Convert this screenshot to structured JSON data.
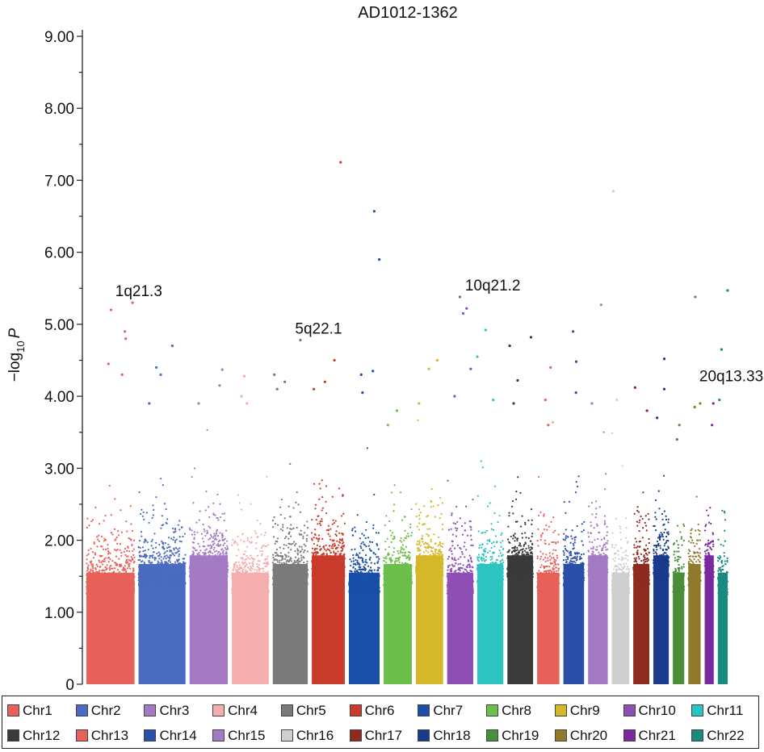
{
  "chart_data": {
    "type": "scatter",
    "title": "AD1012-1362",
    "ylabel_prefix": "−log",
    "ylabel_sub": "10",
    "ylabel_var": "P",
    "xlabel": "",
    "ylim": [
      0,
      9.0
    ],
    "yticks": [
      "0",
      "1.00",
      "2.00",
      "3.00",
      "4.00",
      "5.00",
      "6.00",
      "7.00",
      "8.00",
      "9.00"
    ],
    "grid": false,
    "legend_position": "bottom",
    "chromosomes": [
      {
        "name": "Chr1",
        "color": "#e8605a",
        "size": 249,
        "peak": 5.3,
        "top": [
          5.3,
          5.2,
          4.9,
          4.8,
          4.45,
          4.3
        ]
      },
      {
        "name": "Chr2",
        "color": "#4a6bbf",
        "size": 243,
        "peak": 4.7,
        "top": [
          4.7,
          4.4,
          4.3,
          3.9
        ]
      },
      {
        "name": "Chr3",
        "color": "#a57ac4",
        "size": 198,
        "peak": 4.4,
        "top": [
          4.37,
          4.15,
          3.9
        ]
      },
      {
        "name": "Chr4",
        "color": "#f4aeae",
        "size": 191,
        "peak": 4.3,
        "top": [
          4.28,
          4.0,
          3.9
        ]
      },
      {
        "name": "Chr5",
        "color": "#7a7a7a",
        "size": 181,
        "peak": 4.8,
        "top": [
          4.78,
          4.3,
          4.2,
          4.1
        ]
      },
      {
        "name": "Chr6",
        "color": "#c93b2a",
        "size": 171,
        "peak": 7.25,
        "top": [
          7.25,
          4.5,
          4.2,
          4.1
        ]
      },
      {
        "name": "Chr7",
        "color": "#1a4fa8",
        "size": 159,
        "peak": 6.57,
        "top": [
          6.57,
          5.9,
          4.35,
          4.3,
          4.05
        ]
      },
      {
        "name": "Chr8",
        "color": "#6bbf4a",
        "size": 146,
        "peak": 3.8,
        "top": [
          3.8,
          3.6
        ]
      },
      {
        "name": "Chr9",
        "color": "#d4b82a",
        "size": 141,
        "peak": 4.5,
        "top": [
          4.5,
          4.38,
          3.9
        ]
      },
      {
        "name": "Chr10",
        "color": "#8e4fb5",
        "size": 135,
        "peak": 5.38,
        "top": [
          5.38,
          5.22,
          5.15,
          4.38,
          4.0
        ]
      },
      {
        "name": "Chr11",
        "color": "#2cc4c0",
        "size": 135,
        "peak": 4.92,
        "top": [
          4.92,
          4.55,
          3.95
        ]
      },
      {
        "name": "Chr12",
        "color": "#3a3a3a",
        "size": 133,
        "peak": 4.82,
        "top": [
          4.82,
          4.7,
          4.22,
          3.9
        ]
      },
      {
        "name": "Chr13",
        "color": "#e8605a",
        "size": 115,
        "peak": 4.4,
        "top": [
          4.4,
          3.95,
          3.6
        ]
      },
      {
        "name": "Chr14",
        "color": "#2a4fa8",
        "size": 107,
        "peak": 4.9,
        "top": [
          4.9,
          4.48,
          4.05
        ]
      },
      {
        "name": "Chr15",
        "color": "#a57ac4",
        "size": 102,
        "peak": 5.27,
        "top": [
          5.27,
          3.9
        ]
      },
      {
        "name": "Chr16",
        "color": "#cfcfcf",
        "size": 90,
        "peak": 6.85,
        "top": [
          6.85,
          3.95
        ]
      },
      {
        "name": "Chr17",
        "color": "#8e2a1e",
        "size": 83,
        "peak": 4.12,
        "top": [
          4.12,
          3.8
        ]
      },
      {
        "name": "Chr18",
        "color": "#1a3a8e",
        "size": 80,
        "peak": 4.52,
        "top": [
          4.52,
          4.1,
          3.7
        ]
      },
      {
        "name": "Chr19",
        "color": "#4a8e3a",
        "size": 59,
        "peak": 3.6,
        "top": [
          3.6,
          3.4
        ]
      },
      {
        "name": "Chr20",
        "color": "#8e7a2a",
        "size": 64,
        "peak": 5.38,
        "top": [
          5.38,
          3.9,
          3.85
        ]
      },
      {
        "name": "Chr21",
        "color": "#7a2a9e",
        "size": 47,
        "peak": 3.9,
        "top": [
          3.9,
          3.6
        ]
      },
      {
        "name": "Chr22",
        "color": "#1a8a80",
        "size": 51,
        "peak": 5.47,
        "top": [
          5.47,
          4.65,
          3.95
        ]
      }
    ],
    "annotations": [
      {
        "text": "1q21.3",
        "chr": "Chr1",
        "y": 5.3
      },
      {
        "text": "5q22.1",
        "chr": "Chr5",
        "y": 4.78
      },
      {
        "text": "10q21.2",
        "chr": "Chr10",
        "y": 5.38
      },
      {
        "text": "20q13.33",
        "chr": "Chr20",
        "y": 4.12
      }
    ]
  }
}
